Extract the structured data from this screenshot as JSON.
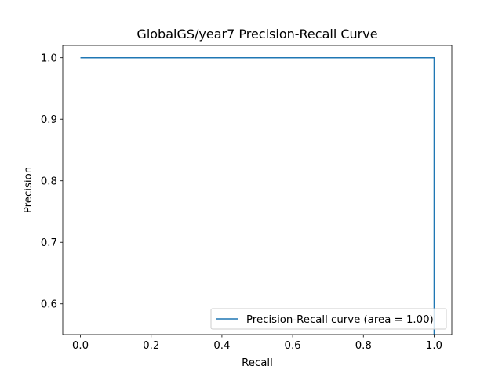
{
  "chart_data": {
    "type": "line",
    "title": "GlobalGS/year7 Precision-Recall Curve",
    "xlabel": "Recall",
    "ylabel": "Precision",
    "xlim": [
      -0.05,
      1.05
    ],
    "ylim": [
      0.55,
      1.02
    ],
    "xticks": [
      0.0,
      0.2,
      0.4,
      0.6,
      0.8,
      1.0
    ],
    "xtick_labels": [
      "0.0",
      "0.2",
      "0.4",
      "0.6",
      "0.8",
      "1.0"
    ],
    "yticks": [
      0.6,
      0.7,
      0.8,
      0.9,
      1.0
    ],
    "ytick_labels": [
      "0.6",
      "0.7",
      "0.8",
      "0.9",
      "1.0"
    ],
    "grid": false,
    "legend_position": "lower-right",
    "series": [
      {
        "name": "Precision-Recall curve (area = 1.00)",
        "color": "#1f77b4",
        "x": [
          0.0,
          1.0,
          1.0
        ],
        "y": [
          1.0,
          1.0,
          0.5
        ]
      }
    ]
  }
}
